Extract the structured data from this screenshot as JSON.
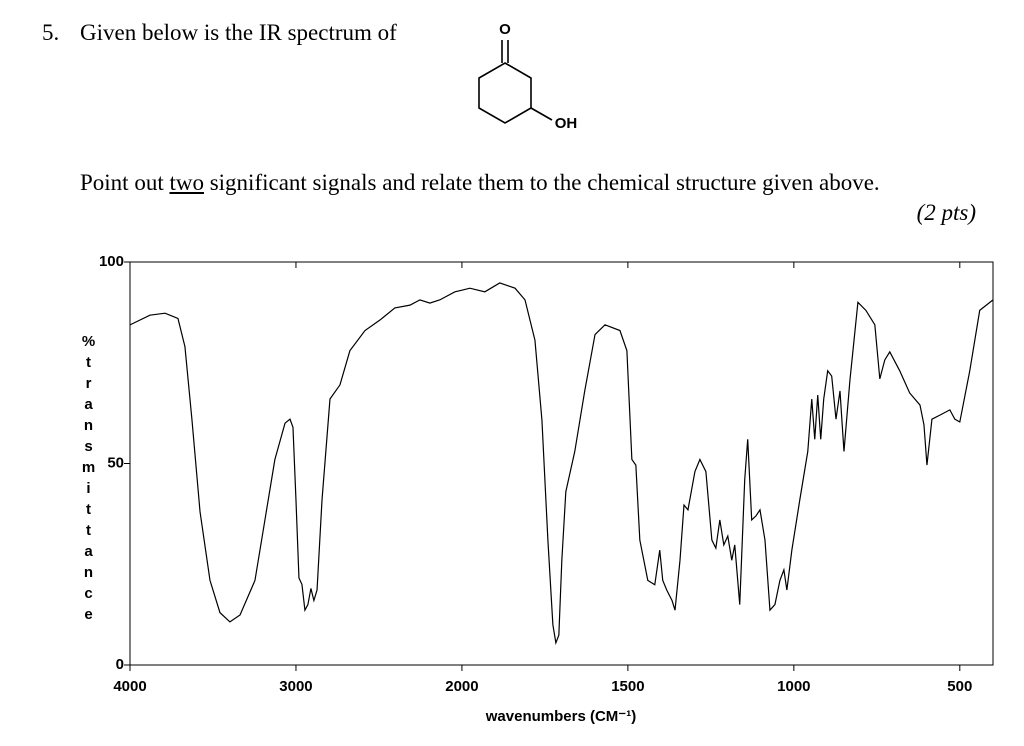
{
  "question": {
    "number": "5.",
    "intro": "Given below is the IR spectrum of",
    "prompt_before": "Point out",
    "prompt_emphasis": "two",
    "prompt_after": "significant signals and relate them to the chemical structure given above.",
    "points": "(2 pts)"
  },
  "structure": {
    "carbonyl_label": "O",
    "hydroxyl_label": "OH"
  },
  "chart_data": {
    "type": "line",
    "xlabel": "wavenumbers (CM⁻¹)",
    "ylabel": "%transmittance",
    "xlim": [
      4000,
      400
    ],
    "x_scale_break": 2000,
    "ylim": [
      0,
      100
    ],
    "xticks": [
      4000,
      3000,
      2000,
      1500,
      1000,
      500
    ],
    "yticks": [
      0,
      50,
      100
    ],
    "color": "#000000",
    "x": [
      4000,
      3880,
      3789,
      3711,
      3669,
      3627,
      3578,
      3518,
      3458,
      3398,
      3337,
      3247,
      3187,
      3127,
      3066,
      3036,
      3018,
      3000,
      2982,
      2964,
      2946,
      2928,
      2910,
      2892,
      2873,
      2843,
      2795,
      2735,
      2675,
      2584,
      2494,
      2404,
      2313,
      2253,
      2193,
      2133,
      2042,
      2000,
      1976,
      1931,
      1886,
      1840,
      1810,
      1780,
      1759,
      1741,
      1726,
      1717,
      1708,
      1699,
      1687,
      1660,
      1630,
      1599,
      1569,
      1524,
      1503,
      1488,
      1476,
      1464,
      1440,
      1419,
      1404,
      1395,
      1383,
      1367,
      1358,
      1343,
      1331,
      1319,
      1298,
      1283,
      1265,
      1247,
      1235,
      1223,
      1211,
      1199,
      1187,
      1178,
      1163,
      1148,
      1139,
      1127,
      1114,
      1102,
      1087,
      1072,
      1057,
      1042,
      1030,
      1021,
      1006,
      982,
      958,
      946,
      937,
      928,
      919,
      910,
      898,
      886,
      873,
      861,
      849,
      831,
      807,
      783,
      756,
      741,
      726,
      711,
      681,
      651,
      620,
      608,
      599,
      584,
      560,
      530,
      515,
      500,
      470,
      440,
      400
    ],
    "values": [
      84.4,
      86.8,
      87.3,
      86,
      79,
      61,
      38,
      21,
      13,
      10.7,
      12.4,
      21,
      36,
      51,
      60,
      61,
      59,
      41,
      21.6,
      20,
      13.6,
      15,
      19,
      16,
      18.6,
      41,
      66,
      69.5,
      78,
      83,
      85.6,
      88.6,
      89.3,
      90.6,
      89.8,
      90.6,
      92.6,
      93,
      93.5,
      92.6,
      94.8,
      93.5,
      90.6,
      80.6,
      60.8,
      31,
      10,
      5.5,
      7.4,
      26,
      43,
      53,
      68,
      82,
      84.4,
      83,
      78,
      51,
      49.6,
      31,
      21,
      19.9,
      28.5,
      21,
      18.6,
      16,
      13.6,
      26,
      39.7,
      38.5,
      48,
      51,
      48,
      31,
      29,
      36,
      29.8,
      32,
      26,
      29.8,
      15,
      46,
      56,
      36,
      37,
      38.5,
      31,
      13.6,
      15,
      21,
      23.6,
      18.6,
      28.5,
      41,
      53,
      66,
      56,
      67,
      56,
      66,
      73,
      71.7,
      61,
      68,
      53,
      70.7,
      90,
      88,
      84.4,
      71,
      75.7,
      77.7,
      73,
      67.5,
      64.5,
      59.6,
      49.6,
      61,
      62,
      63.3,
      61,
      60.3,
      73,
      88,
      90.6
    ]
  }
}
